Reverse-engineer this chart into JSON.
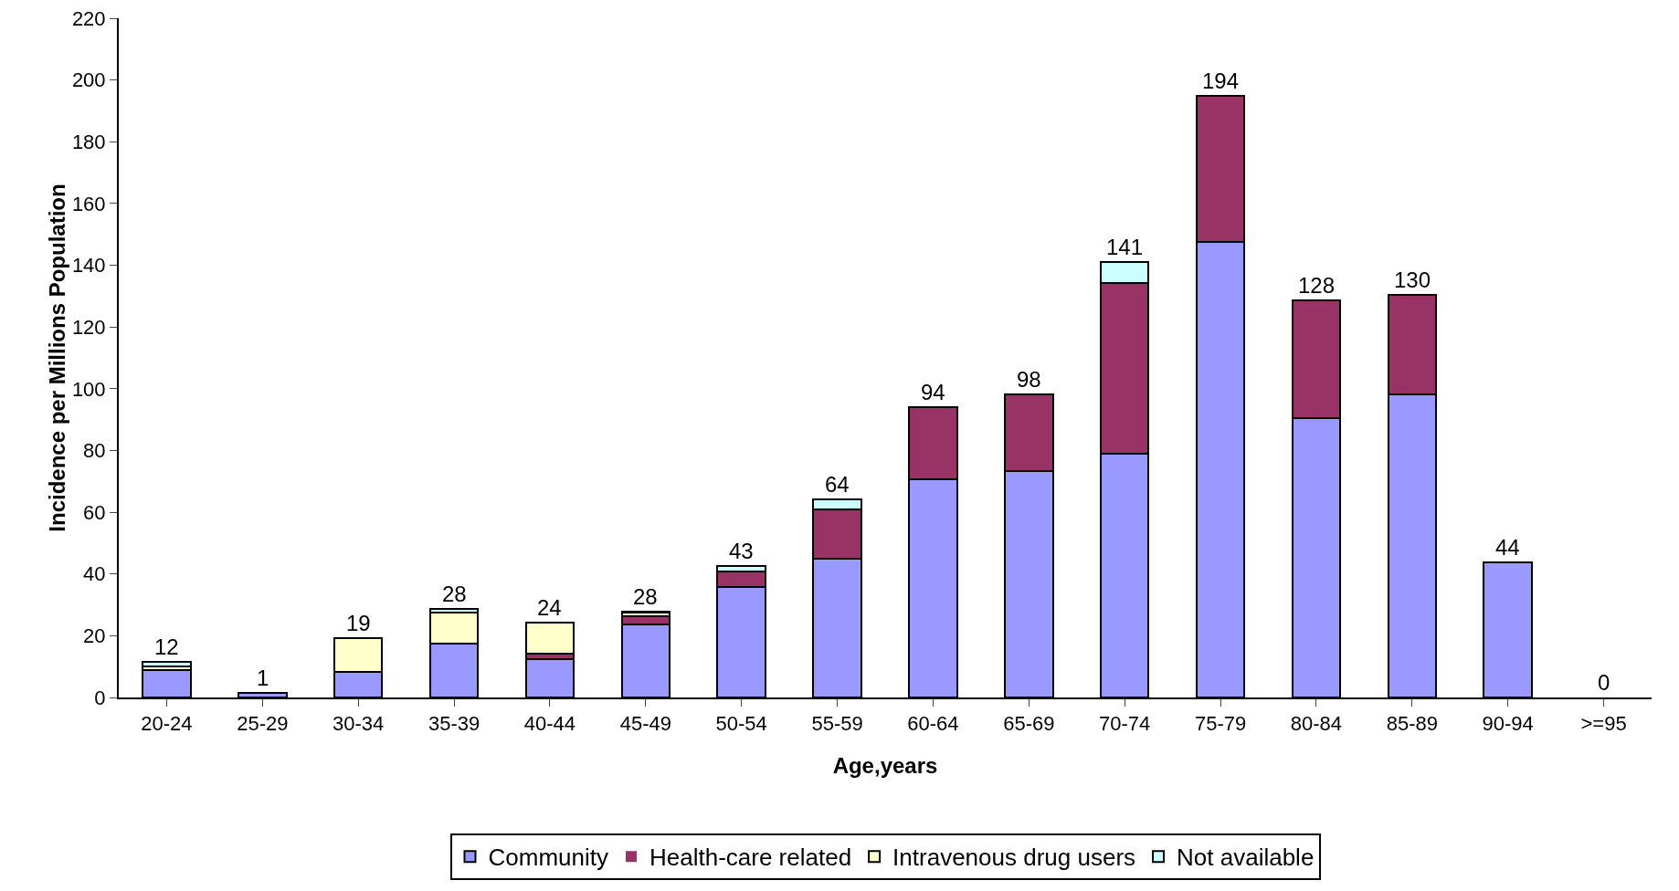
{
  "chart_data": {
    "type": "bar",
    "stacked": true,
    "xlabel": "Age,years",
    "ylabel": "Incidence per Millions Population",
    "categories": [
      "20-24",
      "25-29",
      "30-34",
      "35-39",
      "40-44",
      "45-49",
      "50-54",
      "55-59",
      "60-64",
      "65-69",
      "70-74",
      "75-79",
      "80-84",
      "85-89",
      "90-94",
      ">=95"
    ],
    "series": [
      {
        "name": "Community",
        "color": "#9999ff",
        "values": [
          9,
          1.4,
          8.3,
          17.4,
          12.3,
          23.7,
          35.9,
          45,
          70.6,
          73.3,
          79.1,
          147.7,
          90.6,
          98.2,
          43.7,
          0
        ]
      },
      {
        "name": "Health-care related",
        "color": "#993366",
        "values": [
          0,
          0,
          0,
          0,
          1.9,
          2.6,
          5,
          16,
          23.5,
          25,
          55.2,
          47.2,
          38.1,
          32.2,
          0,
          0
        ]
      },
      {
        "name": "Intravenous drug users",
        "color": "#ffffcc",
        "values": [
          1.2,
          0,
          10.9,
          10,
          10.1,
          1.1,
          0,
          0,
          0,
          0,
          0,
          0,
          0,
          0,
          0,
          0
        ]
      },
      {
        "name": "Not available",
        "color": "#ccffff",
        "values": [
          1.4,
          0,
          0,
          1.2,
          0,
          0.5,
          1.7,
          3.2,
          0,
          0,
          6.8,
          0,
          0,
          0,
          0,
          0
        ]
      }
    ],
    "totals": [
      "12",
      "1",
      "19",
      "28",
      "24",
      "28",
      "43",
      "64",
      "94",
      "98",
      "141",
      "194",
      "128",
      "130",
      "44",
      "0"
    ],
    "ylim": [
      0,
      220
    ],
    "yticks": [
      0,
      20,
      40,
      60,
      80,
      100,
      120,
      140,
      160,
      180,
      200,
      220
    ],
    "grid": false,
    "legend": "bottom"
  }
}
